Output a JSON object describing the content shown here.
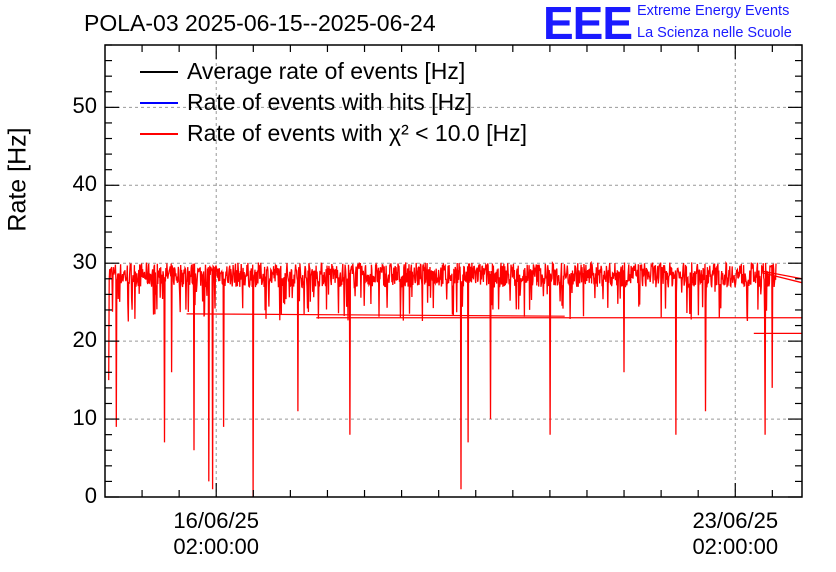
{
  "header": {
    "title": "POLA-03 2025-06-15--2025-06-24",
    "logo_text": "EEE",
    "logo_line1": "Extreme Energy Events",
    "logo_line2": "La Scienza nelle Scuole"
  },
  "colors": {
    "average": "#000000",
    "hits": "#0000ff",
    "chi2": "#ff0000",
    "logo": "#1a1aff",
    "grid": "#999999"
  },
  "chart_data": {
    "type": "line",
    "title": "POLA-03 2025-06-15--2025-06-24",
    "ylabel": "Rate [Hz]",
    "ylim": [
      0,
      58
    ],
    "yticks": [
      "0",
      "10",
      "20",
      "30",
      "40",
      "50"
    ],
    "ytick_values": [
      0,
      10,
      20,
      30,
      40,
      50
    ],
    "xaxis": "time",
    "xlim_days": [
      0,
      9.4
    ],
    "xticks": [
      {
        "date": "16/06/25",
        "time": "02:00:00",
        "day": 1.5
      },
      {
        "date": "23/06/25",
        "time": "02:00:00",
        "day": 8.5
      }
    ],
    "grid": true,
    "legend_position": "top-left",
    "series": [
      {
        "name": "Average rate of events [Hz]",
        "color": "#000000",
        "baseline": 28.5
      },
      {
        "name": "Rate of events with hits [Hz]",
        "color": "#0000ff",
        "baseline": 28.5
      },
      {
        "name": "Rate of events with χ² < 10.0 [Hz]",
        "color": "#ff0000",
        "baseline": 28.5,
        "noise": 1.6,
        "dips": [
          [
            0.05,
            15
          ],
          [
            0.15,
            9
          ],
          [
            0.8,
            7
          ],
          [
            0.9,
            16
          ],
          [
            1.2,
            6
          ],
          [
            1.4,
            2
          ],
          [
            1.45,
            1
          ],
          [
            1.6,
            9
          ],
          [
            2.0,
            0
          ],
          [
            2.6,
            11
          ],
          [
            3.3,
            8
          ],
          [
            4.8,
            1
          ],
          [
            4.9,
            7
          ],
          [
            5.2,
            10
          ],
          [
            6.0,
            8
          ],
          [
            7.0,
            16
          ],
          [
            7.7,
            8
          ],
          [
            8.1,
            11
          ],
          [
            8.9,
            8
          ],
          [
            9.0,
            14
          ],
          [
            9.3,
            18
          ]
        ]
      }
    ]
  }
}
